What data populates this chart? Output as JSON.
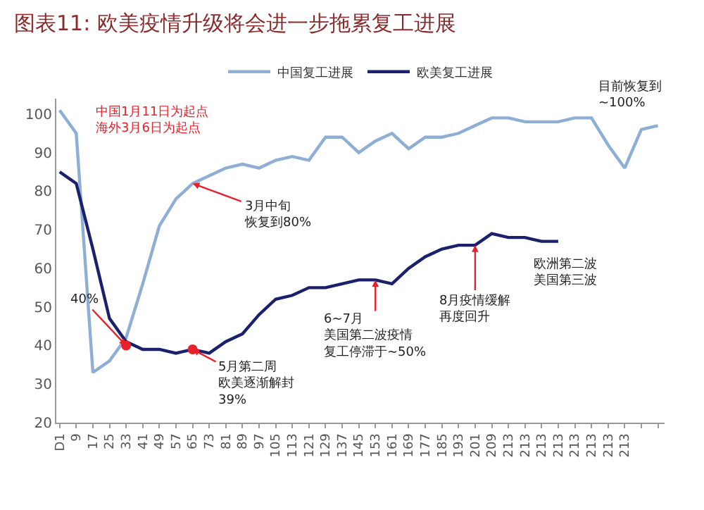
{
  "chart_data": {
    "type": "line",
    "title": "图表11: 欧美疫情升级将会进一步拖累复工进展",
    "categories": [
      "D1",
      "9",
      "17",
      "25",
      "33",
      "41",
      "49",
      "57",
      "65",
      "73",
      "81",
      "89",
      "97",
      "105",
      "113",
      "121",
      "129",
      "137",
      "145",
      "153",
      "161",
      "169",
      "177",
      "185",
      "193",
      "201",
      "209",
      "213",
      "213",
      "213",
      "213",
      "213",
      "213",
      "213",
      "213",
      null,
      null
    ],
    "ylim": [
      20,
      104
    ],
    "yticks": [
      20,
      30,
      40,
      50,
      60,
      70,
      80,
      90,
      100
    ],
    "legend": "top",
    "marker": "none",
    "line_style": "solid",
    "series": [
      {
        "name": "中国复工进展",
        "color": "#8eaed6",
        "values": [
          101,
          95,
          33,
          36,
          42,
          56,
          71,
          78,
          82,
          84,
          86,
          87,
          86,
          88,
          89,
          88,
          94,
          94,
          90,
          93,
          95,
          91,
          94,
          94,
          95,
          97,
          99,
          99,
          98,
          98,
          98,
          99,
          99,
          92,
          86,
          96,
          97
        ]
      },
      {
        "name": "欧美复工进展",
        "color": "#1a1f6e",
        "values": [
          85,
          82,
          65,
          47,
          41,
          39,
          39,
          38,
          39,
          38,
          41,
          43,
          48,
          52,
          53,
          55,
          55,
          56,
          57,
          57,
          56,
          60,
          63,
          65,
          66,
          66,
          69,
          68,
          68,
          67,
          67,
          null,
          null,
          null,
          null,
          null,
          null
        ]
      },
      {
        "type": "scatter",
        "marker": "circle",
        "color": "#e8202a",
        "values": [
          null,
          null,
          null,
          null,
          40,
          null,
          null,
          null,
          39,
          null,
          null,
          null,
          null,
          null,
          null,
          null,
          null,
          null,
          null,
          null,
          null,
          null,
          null,
          null,
          null,
          null,
          null,
          null,
          null,
          null,
          null,
          null,
          null,
          null,
          null,
          null,
          null
        ]
      }
    ],
    "annotations": [
      "中国1月11日为起点海外3月6日为起点",
      {
        "text": "3月中旬恢复到80%",
        "x": "65",
        "y": 82
      },
      "目前恢复到~100%",
      {
        "text": "40%",
        "x": "33",
        "y": 40
      },
      {
        "text": "5月第二周欧美逐渐解封39%",
        "x": "65",
        "y": 39
      },
      {
        "text": "6~7月美国第二波疫情复工停滞于~50%",
        "x": "153",
        "y": 57
      },
      {
        "text": "8月疫情缓解再度回升",
        "x": "201",
        "y": 66
      },
      "欧洲第二波美国第三波"
    ]
  }
}
